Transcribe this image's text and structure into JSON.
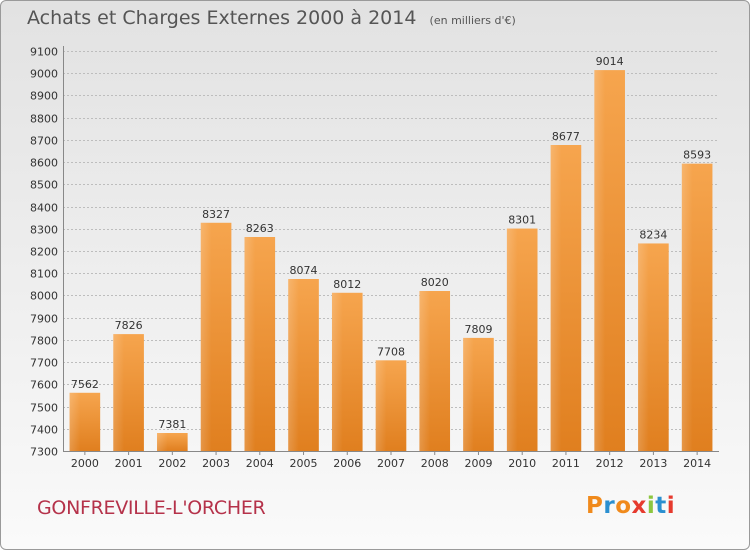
{
  "header": {
    "title": "Achats et Charges Externes 2000 à 2014",
    "subtitle": "(en milliers d'€)"
  },
  "footer": {
    "city": "GONFREVILLE-L'ORCHER",
    "logo": "Proxiti",
    "logo_colors": [
      "#f08a1c",
      "#2a8fd0",
      "#f08a1c",
      "#e63a2e",
      "#8cc63f",
      "#2a8fd0",
      "#e63a2e"
    ]
  },
  "colors": {
    "bar_light": "#f6a54e",
    "bar_dark": "#e07f1f",
    "grid": "#bdbdbd",
    "text": "#333333",
    "city": "#b5324a"
  },
  "chart_data": {
    "type": "bar",
    "title": "Achats et Charges Externes 2000 à 2014",
    "subtitle": "(en milliers d'€)",
    "xlabel": "",
    "ylabel": "",
    "categories": [
      "2000",
      "2001",
      "2002",
      "2003",
      "2004",
      "2005",
      "2006",
      "2007",
      "2008",
      "2009",
      "2010",
      "2011",
      "2012",
      "2013",
      "2014"
    ],
    "values": [
      7562,
      7826,
      7381,
      8327,
      8263,
      8074,
      8012,
      7708,
      8020,
      7809,
      8301,
      8677,
      9014,
      8234,
      8593
    ],
    "ylim": [
      7300,
      9100
    ],
    "yticks": [
      7300,
      7400,
      7500,
      7600,
      7700,
      7800,
      7900,
      8000,
      8100,
      8200,
      8300,
      8400,
      8500,
      8600,
      8700,
      8800,
      8900,
      9000,
      9100
    ],
    "grid": true,
    "legend": "none"
  }
}
